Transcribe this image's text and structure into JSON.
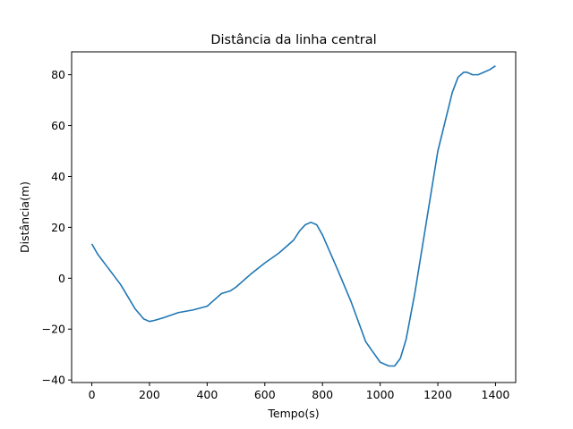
{
  "chart_data": {
    "type": "line",
    "title": "Distância da linha central",
    "xlabel": "Tempo(s)",
    "ylabel": "Distância(m)",
    "xlim": [
      -70,
      1470
    ],
    "ylim": [
      -41,
      89
    ],
    "xticks": [
      0,
      200,
      400,
      600,
      800,
      1000,
      1200,
      1400
    ],
    "yticks": [
      -40,
      -20,
      0,
      20,
      40,
      60,
      80
    ],
    "ytick_labels": [
      "−40",
      "−20",
      "0",
      "20",
      "40",
      "60",
      "80"
    ],
    "grid": false,
    "line_color": "#1f77b4",
    "series": [
      {
        "x": [
          0,
          20,
          50,
          100,
          150,
          180,
          200,
          220,
          250,
          300,
          350,
          400,
          420,
          450,
          480,
          500,
          550,
          600,
          650,
          700,
          720,
          740,
          760,
          780,
          800,
          850,
          900,
          950,
          1000,
          1030,
          1050,
          1070,
          1090,
          1110,
          1120,
          1150,
          1200,
          1250,
          1270,
          1290,
          1300,
          1320,
          1340,
          1360,
          1380,
          1400
        ],
        "values": [
          13.5,
          9.5,
          5,
          -2.5,
          -12,
          -16,
          -17,
          -16.5,
          -15.5,
          -13.5,
          -12.5,
          -11,
          -9,
          -6,
          -5,
          -3.5,
          1.5,
          6,
          10,
          15,
          18.5,
          21,
          22,
          21,
          17,
          4,
          -9.5,
          -25,
          -33,
          -34.5,
          -34.5,
          -31.5,
          -24,
          -12,
          -6,
          15,
          50,
          73,
          79,
          81,
          81,
          80,
          80,
          81,
          82,
          83.5
        ]
      }
    ]
  }
}
